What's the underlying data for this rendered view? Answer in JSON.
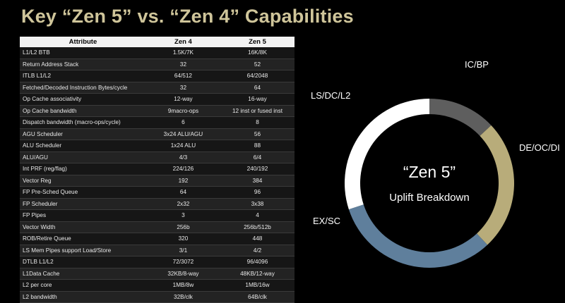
{
  "title": "Key “Zen 5” vs. “Zen 4” Capabilities",
  "table": {
    "headers": [
      "Attribute",
      "Zen 4",
      "Zen 5"
    ],
    "rows": [
      [
        "L1/L2 BTB",
        "1.5K/7K",
        "16K/8K"
      ],
      [
        "Return Address Stack",
        "32",
        "52"
      ],
      [
        "ITLB L1/L2",
        "64/512",
        "64/2048"
      ],
      [
        "Fetched/Decoded Instruction Bytes/cycle",
        "32",
        "64"
      ],
      [
        "Op Cache associativity",
        "12-way",
        "16-way"
      ],
      [
        "Op Cache bandwidth",
        "9macro-ops",
        "12 inst or fused inst"
      ],
      [
        "Dispatch bandwidth (macro-ops/cycle)",
        "6",
        "8"
      ],
      [
        "AGU Scheduler",
        "3x24 ALU/AGU",
        "56"
      ],
      [
        "ALU Scheduler",
        "1x24 ALU",
        "88"
      ],
      [
        "ALU/AGU",
        "4/3",
        "6/4"
      ],
      [
        "Int PRF (reg/flag)",
        "224/126",
        "240/192"
      ],
      [
        "Vector Reg",
        "192",
        "384"
      ],
      [
        "FP Pre-Sched Queue",
        "64",
        "96"
      ],
      [
        "FP Scheduler",
        "2x32",
        "3x38"
      ],
      [
        "FP Pipes",
        "3",
        "4"
      ],
      [
        "Vector Width",
        "256b",
        "256b/512b"
      ],
      [
        "ROB/Retire Queue",
        "320",
        "448"
      ],
      [
        "LS Mem Pipes support Load/Store",
        "3/1",
        "4/2"
      ],
      [
        "DTLB L1/L2",
        "72/3072",
        "96/4096"
      ],
      [
        "L1Data Cache",
        "32KB/8-way",
        "48KB/12-way"
      ],
      [
        "L2 per core",
        "1MB/8w",
        "1MB/16w"
      ],
      [
        "L2 bandwidth",
        "32B/clk",
        "64B/clk"
      ]
    ]
  },
  "chart_data": {
    "type": "pie",
    "title": "“Zen 5”",
    "subtitle": "Uplift Breakdown",
    "categories": [
      "IC/BP",
      "DE/OC/DI",
      "EX/SC",
      "LS/DC/L2"
    ],
    "values": [
      13,
      25,
      32,
      30
    ],
    "colors": [
      "#5e5e5e",
      "#b8ac7a",
      "#5f7f9c",
      "#ffffff"
    ]
  }
}
